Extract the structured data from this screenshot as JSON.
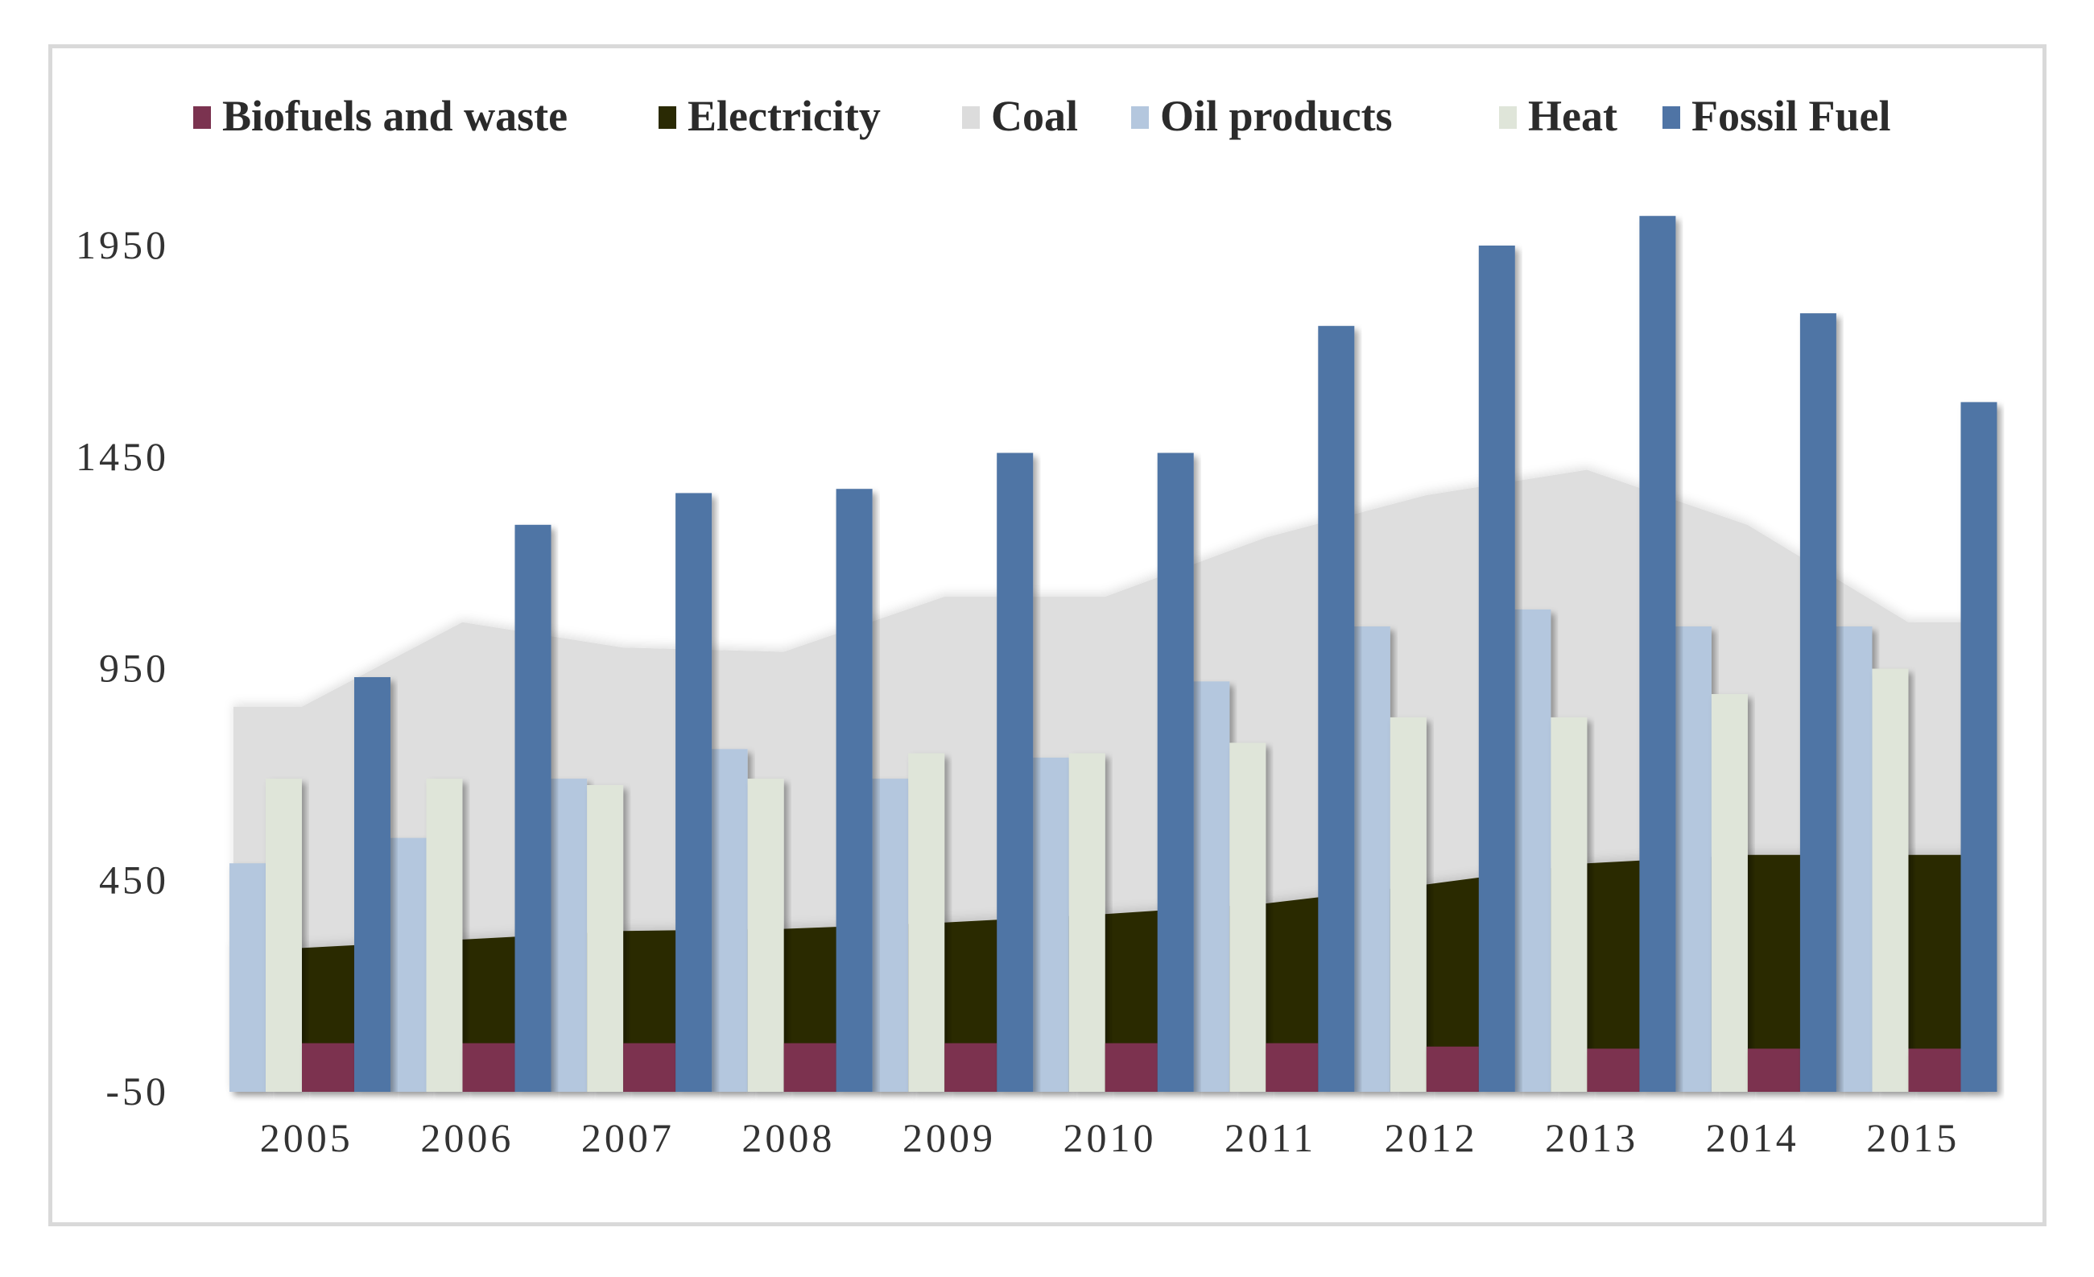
{
  "chart_data": {
    "type": "bar",
    "categories": [
      "2005",
      "2006",
      "2007",
      "2008",
      "2009",
      "2010",
      "2011",
      "2012",
      "2013",
      "2014",
      "2015"
    ],
    "series": [
      {
        "name": "Biofuels and waste",
        "kind": "bar",
        "color": "#7b3350",
        "values": [
          65,
          65,
          65,
          65,
          65,
          65,
          65,
          57,
          52,
          52,
          52
        ]
      },
      {
        "name": "Electricity",
        "kind": "area",
        "color": "#2a2a04",
        "values": [
          290,
          310,
          330,
          335,
          350,
          370,
          395,
          440,
          490,
          510,
          510
        ]
      },
      {
        "name": "Coal",
        "kind": "area",
        "color": "#dcdcdc",
        "values": [
          860,
          1060,
          1000,
          990,
          1120,
          1120,
          1260,
          1360,
          1420,
          1290,
          1060
        ]
      },
      {
        "name": "Oil products",
        "kind": "bar",
        "color": "#b4c7de",
        "values": [
          490,
          550,
          690,
          760,
          690,
          740,
          920,
          1050,
          1090,
          1050,
          1050
        ]
      },
      {
        "name": "Heat",
        "kind": "bar",
        "color": "#dfe5d9",
        "values": [
          690,
          690,
          675,
          690,
          750,
          750,
          775,
          835,
          835,
          890,
          950
        ]
      },
      {
        "name": "Fossil Fuel",
        "kind": "bar",
        "color": "#4f74a5",
        "values": [
          930,
          1290,
          1365,
          1375,
          1460,
          1460,
          1760,
          1950,
          2020,
          1790,
          1580
        ]
      }
    ],
    "yticks": [
      "-50",
      "450",
      "950",
      "1450",
      "1950"
    ],
    "ylim": [
      -50,
      2050
    ],
    "xlabel": "",
    "ylabel": "",
    "title": "",
    "legend_position": "top",
    "grid": false
  }
}
